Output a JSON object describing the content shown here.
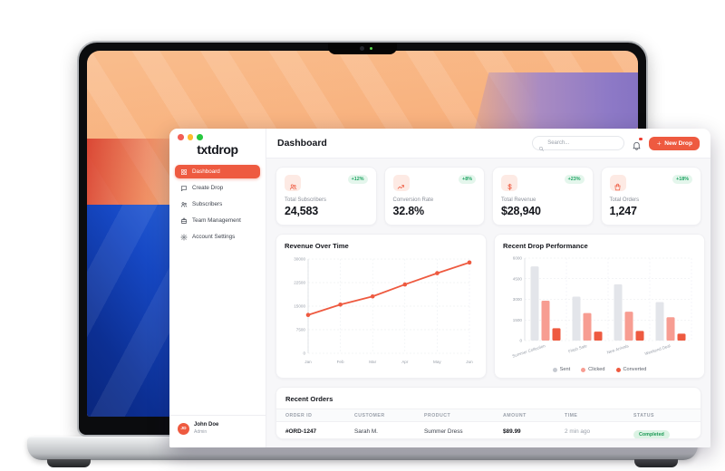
{
  "window_title": {
    "logo": "txtdrop"
  },
  "sidebar": {
    "items": [
      {
        "label": "Dashboard",
        "icon": "grid-icon",
        "active": true
      },
      {
        "label": "Create Drop",
        "icon": "chat-bubble-icon",
        "active": false
      },
      {
        "label": "Subscribers",
        "icon": "users-icon",
        "active": false
      },
      {
        "label": "Team Management",
        "icon": "briefcase-icon",
        "active": false
      },
      {
        "label": "Account Settings",
        "icon": "gear-icon",
        "active": false
      }
    ],
    "user": {
      "initials": "JD",
      "name": "John Doe",
      "role": "Admin"
    }
  },
  "header": {
    "title": "Dashboard",
    "search_placeholder": "Search...",
    "new_drop": {
      "icon": "plus-icon",
      "label": "New Drop"
    },
    "bell_icon": "bell-icon",
    "has_notification": true
  },
  "stats": [
    {
      "label": "Total Subscribers",
      "value": "24,583",
      "change": "+12%",
      "icon": "users-icon"
    },
    {
      "label": "Conversion Rate",
      "value": "32.8%",
      "change": "+8%",
      "icon": "trend-up-icon"
    },
    {
      "label": "Total Revenue",
      "value": "$28,940",
      "change": "+23%",
      "icon": "dollar-icon"
    },
    {
      "label": "Total Orders",
      "value": "1,247",
      "change": "+18%",
      "icon": "shopping-bag-icon"
    }
  ],
  "chart_data": [
    {
      "type": "line",
      "title": "Revenue Over Time",
      "x": [
        "Jan",
        "Feb",
        "Mar",
        "Apr",
        "May",
        "Jun"
      ],
      "values": [
        12200,
        15500,
        18100,
        21900,
        25500,
        28900
      ],
      "ylim": [
        0,
        30000
      ],
      "yticks": [
        0,
        7500,
        15000,
        22500,
        30000
      ],
      "line_color": "#ee5a40",
      "grid": true,
      "legend_position": "none"
    },
    {
      "type": "bar",
      "title": "Recent Drop Performance",
      "categories": [
        "Summer Collection",
        "Flash Sale",
        "New Arrivals",
        "Weekend Deal"
      ],
      "series": [
        {
          "name": "Sent",
          "color": "#e3e5ea",
          "dot": "#c6cad1",
          "values": [
            5400,
            3200,
            4100,
            2800
          ]
        },
        {
          "name": "Clicked",
          "color": "#f79d92",
          "dot": "#f79d92",
          "values": [
            2900,
            2000,
            2100,
            1700
          ]
        },
        {
          "name": "Converted",
          "color": "#ee5a40",
          "dot": "#ee5a40",
          "values": [
            900,
            650,
            700,
            500
          ]
        }
      ],
      "ylim": [
        0,
        6000
      ],
      "yticks": [
        0,
        1500,
        3000,
        4500,
        6000
      ],
      "grid": true,
      "legend_position": "bottom"
    }
  ],
  "orders": {
    "title": "Recent Orders",
    "columns": [
      "ORDER ID",
      "CUSTOMER",
      "PRODUCT",
      "AMOUNT",
      "TIME",
      "STATUS"
    ],
    "rows": [
      {
        "order_id": "#ORD-1247",
        "customer": "Sarah M.",
        "product": "Summer Dress",
        "amount": "$89.99",
        "time": "2 min ago",
        "status": "Completed"
      }
    ]
  },
  "colors": {
    "accent": "#ee5a40",
    "accent_light_bg": "#fdeae4",
    "salmon": "#f79d92",
    "bar_gray": "#e3e5ea",
    "green_text": "#1fa463",
    "green_bg": "#e4f6ec",
    "status_green_text": "#1c9a56",
    "status_green_bg": "#dcf3e4",
    "text_dark": "#14161c",
    "text_gray": "#8b909a",
    "content_bg": "#f7f7f9",
    "traffic_red": "#f25f57",
    "traffic_yellow": "#febb2e",
    "traffic_green": "#28c840"
  }
}
